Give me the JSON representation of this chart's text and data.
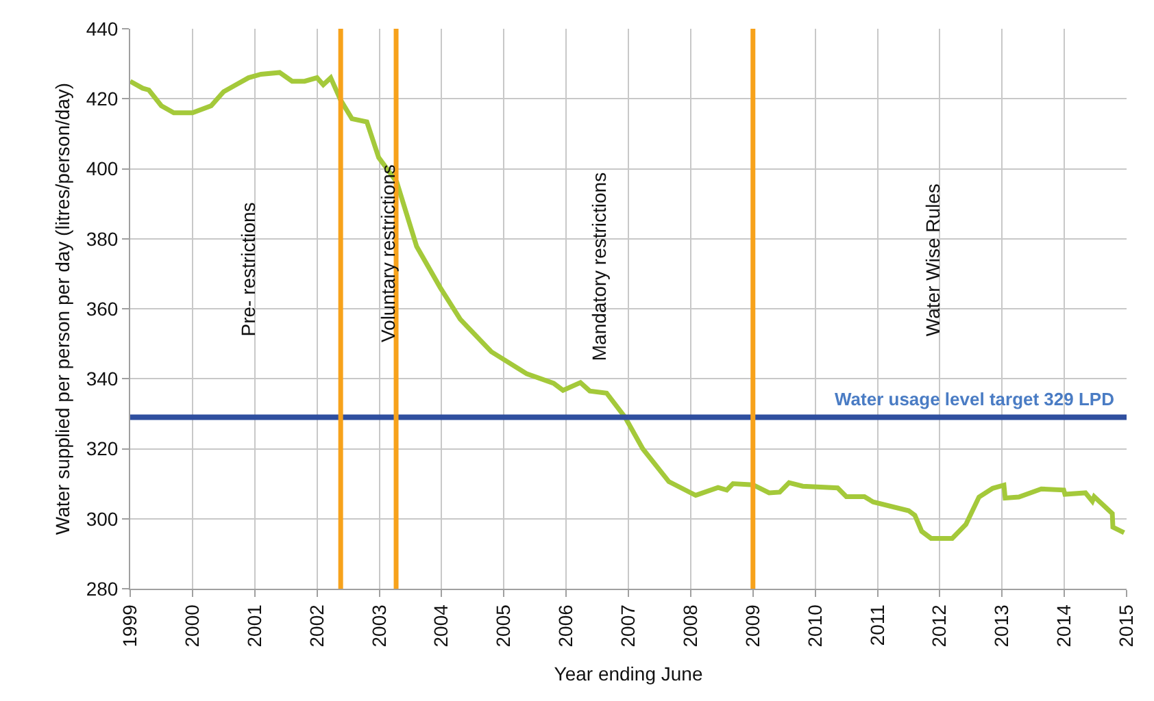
{
  "chart_data": {
    "type": "line",
    "xlabel": "Year ending June",
    "ylabel": "Water supplied per person per day (litres/person/day)",
    "series": [
      {
        "color": "#a4c93a",
        "x": [
          1999.0,
          1999.2,
          1999.3,
          1999.5,
          1999.7,
          2000.0,
          2000.3,
          2000.5,
          2000.7,
          2000.9,
          2001.1,
          2001.4,
          2001.6,
          2001.8,
          2002.0,
          2002.1,
          2002.22,
          2002.38,
          2002.56,
          2002.8,
          2002.99,
          2003.28,
          2003.6,
          2003.98,
          2004.3,
          2004.8,
          2005.37,
          2005.8,
          2005.95,
          2006.23,
          2006.38,
          2006.65,
          2006.95,
          2007.23,
          2007.65,
          2008.08,
          2008.44,
          2008.58,
          2008.68,
          2009.0,
          2009.26,
          2009.43,
          2009.58,
          2009.8,
          2010.36,
          2010.5,
          2010.79,
          2010.93,
          2011.5,
          2011.6,
          2011.71,
          2011.86,
          2012.2,
          2012.42,
          2012.63,
          2012.85,
          2013.03,
          2013.05,
          2013.27,
          2013.63,
          2013.99,
          2014.01,
          2014.34,
          2014.45,
          2014.48,
          2014.77,
          2014.78,
          2014.96
        ],
        "values": [
          425,
          423,
          422.5,
          418,
          416,
          416,
          418,
          422,
          424,
          426,
          427,
          427.5,
          425,
          425,
          426,
          424,
          426,
          419.6,
          414.3,
          413.4,
          403.2,
          396.2,
          377.8,
          366,
          357,
          347.7,
          341.4,
          338.7,
          336.7,
          338.9,
          336.5,
          335.9,
          328.9,
          320,
          310.6,
          306.7,
          308.9,
          308.2,
          310,
          309.7,
          307.4,
          307.6,
          310.3,
          309.3,
          308.8,
          306.3,
          306.3,
          304.8,
          302.3,
          301,
          296.4,
          294.4,
          294.4,
          298.4,
          306.2,
          308.7,
          309.6,
          305.9,
          306.2,
          308.5,
          308.2,
          307,
          307.4,
          305,
          306.3,
          301.5,
          297.6,
          296
        ]
      }
    ],
    "xlim": [
      1999,
      2015
    ],
    "xticks": [
      1999,
      2000,
      2001,
      2002,
      2003,
      2004,
      2005,
      2006,
      2007,
      2008,
      2009,
      2010,
      2011,
      2012,
      2013,
      2014,
      2015
    ],
    "ylim": [
      280,
      440
    ],
    "yticks": [
      280,
      300,
      320,
      340,
      360,
      380,
      400,
      420,
      440
    ],
    "grid": true,
    "ref_lines": [
      {
        "axis": "y",
        "value": 329,
        "label": "Water usage level target 329 LPD",
        "color": "#2f4f9f"
      },
      {
        "axis": "x",
        "value": 2002.38,
        "color": "#f7a21b"
      },
      {
        "axis": "x",
        "value": 2003.27,
        "color": "#f7a21b"
      },
      {
        "axis": "x",
        "value": 2009.0,
        "color": "#f7a21b"
      }
    ],
    "annotations": [
      "Pre- restrictions",
      "Voluntary restrictions",
      "Mandatory restrictions",
      "Water Wise Rules"
    ]
  }
}
